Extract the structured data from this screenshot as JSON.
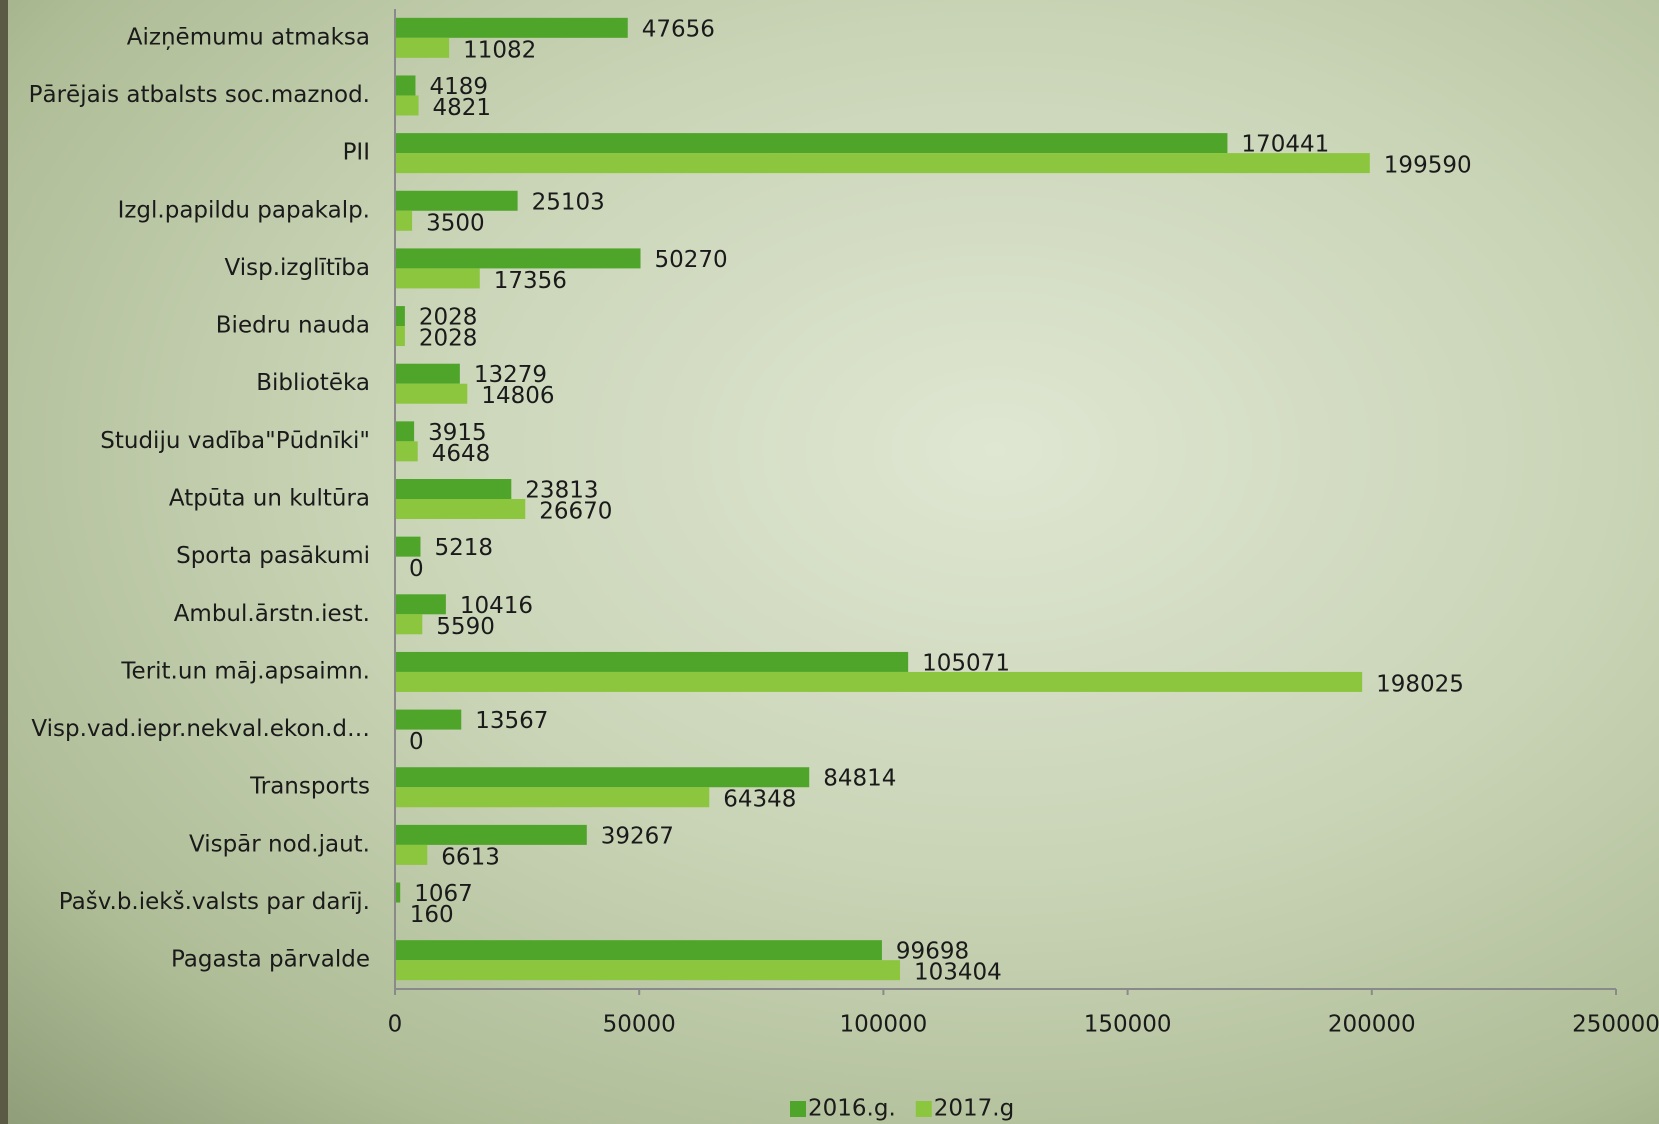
{
  "chart_data": {
    "type": "hbar",
    "categories": [
      "Aizņēmumu atmaksa",
      "Pārējais atbalsts soc.maznod.",
      "PII",
      "Izgl.papildu papakalp.",
      "Visp.izglītība",
      "Biedru nauda",
      "Bibliotēka",
      "Studiju vadība\"Pūdnīki\"",
      "Atpūta un kultūra",
      "Sporta pasākumi",
      "Ambul.ārstn.iest.",
      "Terit.un māj.apsaimn.",
      "Visp.vad.iepr.nekval.ekon.d…",
      "Transports",
      "Vispār nod.jaut.",
      "Pašv.b.iekš.valsts par darīj.",
      "Pagasta pārvalde"
    ],
    "series": [
      {
        "name": "2016.g.",
        "color": "#4ea52a",
        "values": [
          47656,
          4189,
          170441,
          25103,
          50270,
          2028,
          13279,
          3915,
          23813,
          5218,
          10416,
          105071,
          13567,
          84814,
          39267,
          1067,
          99698
        ]
      },
      {
        "name": "2017.g",
        "color": "#8cc63e",
        "values": [
          11082,
          4821,
          199590,
          3500,
          17356,
          2028,
          14806,
          4648,
          26670,
          0,
          5590,
          198025,
          0,
          64348,
          6613,
          160,
          103404
        ]
      }
    ],
    "xlim": [
      0,
      250000
    ],
    "xticks": [
      0,
      50000,
      100000,
      150000,
      200000,
      250000
    ],
    "legend": "bottom"
  }
}
